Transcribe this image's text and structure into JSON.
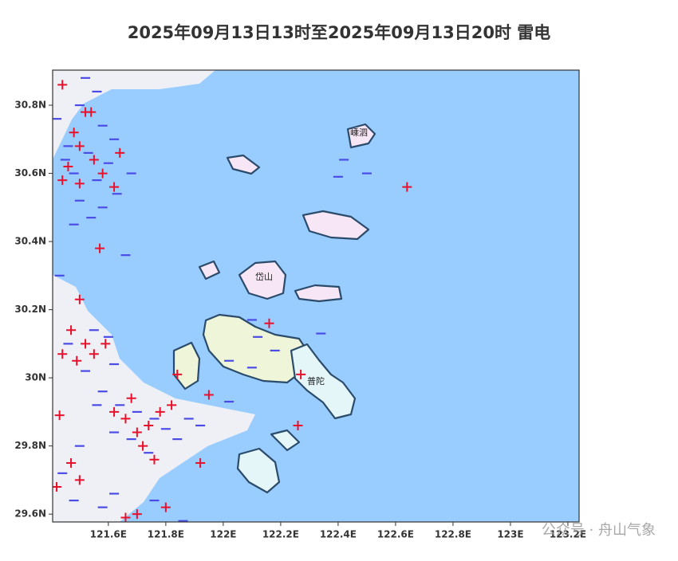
{
  "map": {
    "title": "2025年09月13日13时至2025年09月13日20时 雷电",
    "xlim": [
      121.406,
      123.239
    ],
    "ylim": [
      29.577,
      30.903
    ],
    "xticks": [
      {
        "value": 121.6,
        "label": "121.6E"
      },
      {
        "value": 121.8,
        "label": "121.8E"
      },
      {
        "value": 122,
        "label": "122E"
      },
      {
        "value": 122.2,
        "label": "122.2E"
      },
      {
        "value": 122.4,
        "label": "122.4E"
      },
      {
        "value": 122.6,
        "label": "122.6E"
      },
      {
        "value": 122.8,
        "label": "122.8E"
      },
      {
        "value": 123,
        "label": "123E"
      },
      {
        "value": 123.2,
        "label": "123.2E"
      }
    ],
    "yticks": [
      {
        "value": 29.6,
        "label": "29.6N"
      },
      {
        "value": 29.8,
        "label": "29.8N"
      },
      {
        "value": 30,
        "label": "30N"
      },
      {
        "value": 30.2,
        "label": "30.2N"
      },
      {
        "value": 30.4,
        "label": "30.4N"
      },
      {
        "value": 30.6,
        "label": "30.6N"
      },
      {
        "value": 30.8,
        "label": "30.8N"
      }
    ],
    "places": [
      "嵊泗",
      "岱山",
      "普陀"
    ],
    "strikes": {
      "positive": [
        [
          121.44,
          30.86
        ],
        [
          121.52,
          30.78
        ],
        [
          121.48,
          30.72
        ],
        [
          121.5,
          30.68
        ],
        [
          121.46,
          30.62
        ],
        [
          121.55,
          30.64
        ],
        [
          121.58,
          30.6
        ],
        [
          121.5,
          30.57
        ],
        [
          121.62,
          30.56
        ],
        [
          121.44,
          30.58
        ],
        [
          121.57,
          30.38
        ],
        [
          121.54,
          30.78
        ],
        [
          121.64,
          30.66
        ],
        [
          121.5,
          30.23
        ],
        [
          121.47,
          30.14
        ],
        [
          121.52,
          30.1
        ],
        [
          121.44,
          30.07
        ],
        [
          121.49,
          30.05
        ],
        [
          121.55,
          30.07
        ],
        [
          121.59,
          30.1
        ],
        [
          121.43,
          29.89
        ],
        [
          121.62,
          29.9
        ],
        [
          121.66,
          29.88
        ],
        [
          121.7,
          29.84
        ],
        [
          121.74,
          29.86
        ],
        [
          121.78,
          29.9
        ],
        [
          121.68,
          29.94
        ],
        [
          121.72,
          29.8
        ],
        [
          121.82,
          29.92
        ],
        [
          121.84,
          30.01
        ],
        [
          121.76,
          29.76
        ],
        [
          121.95,
          29.95
        ],
        [
          121.92,
          29.75
        ],
        [
          121.47,
          29.75
        ],
        [
          121.42,
          29.68
        ],
        [
          121.5,
          29.7
        ],
        [
          121.7,
          29.6
        ],
        [
          121.66,
          29.59
        ],
        [
          121.8,
          29.62
        ],
        [
          122.16,
          30.16
        ],
        [
          122.27,
          30.01
        ],
        [
          122.26,
          29.86
        ],
        [
          122.64,
          30.56
        ]
      ],
      "negative": [
        [
          121.52,
          30.88
        ],
        [
          121.56,
          30.84
        ],
        [
          121.5,
          30.8
        ],
        [
          121.42,
          30.76
        ],
        [
          121.58,
          30.74
        ],
        [
          121.62,
          30.7
        ],
        [
          121.46,
          30.68
        ],
        [
          121.53,
          30.66
        ],
        [
          121.6,
          30.63
        ],
        [
          121.48,
          30.6
        ],
        [
          121.56,
          30.58
        ],
        [
          121.63,
          30.54
        ],
        [
          121.5,
          30.52
        ],
        [
          121.58,
          30.5
        ],
        [
          121.54,
          30.47
        ],
        [
          121.68,
          30.6
        ],
        [
          121.45,
          30.64
        ],
        [
          121.66,
          30.36
        ],
        [
          121.6,
          30.12
        ],
        [
          121.55,
          30.14
        ],
        [
          121.52,
          30.02
        ],
        [
          121.62,
          30.04
        ],
        [
          121.46,
          30.1
        ],
        [
          121.58,
          29.96
        ],
        [
          121.64,
          29.92
        ],
        [
          121.7,
          29.9
        ],
        [
          121.76,
          29.88
        ],
        [
          121.8,
          29.85
        ],
        [
          121.68,
          29.82
        ],
        [
          121.74,
          29.78
        ],
        [
          121.84,
          29.82
        ],
        [
          121.88,
          29.88
        ],
        [
          121.62,
          29.84
        ],
        [
          121.92,
          29.86
        ],
        [
          121.56,
          29.92
        ],
        [
          121.5,
          29.8
        ],
        [
          121.44,
          29.72
        ],
        [
          121.48,
          29.64
        ],
        [
          121.58,
          29.62
        ],
        [
          121.62,
          29.66
        ],
        [
          121.76,
          29.64
        ],
        [
          121.86,
          29.58
        ],
        [
          122.02,
          29.93
        ],
        [
          122.1,
          30.03
        ],
        [
          122.12,
          30.12
        ],
        [
          122.18,
          30.08
        ],
        [
          122.02,
          30.05
        ],
        [
          122.42,
          30.64
        ],
        [
          122.4,
          30.59
        ],
        [
          122.34,
          30.13
        ],
        [
          122.1,
          30.17
        ],
        [
          122.5,
          30.6
        ],
        [
          121.43,
          30.3
        ],
        [
          121.48,
          30.45
        ]
      ]
    },
    "watermark": "公众号 · 舟山气象"
  }
}
